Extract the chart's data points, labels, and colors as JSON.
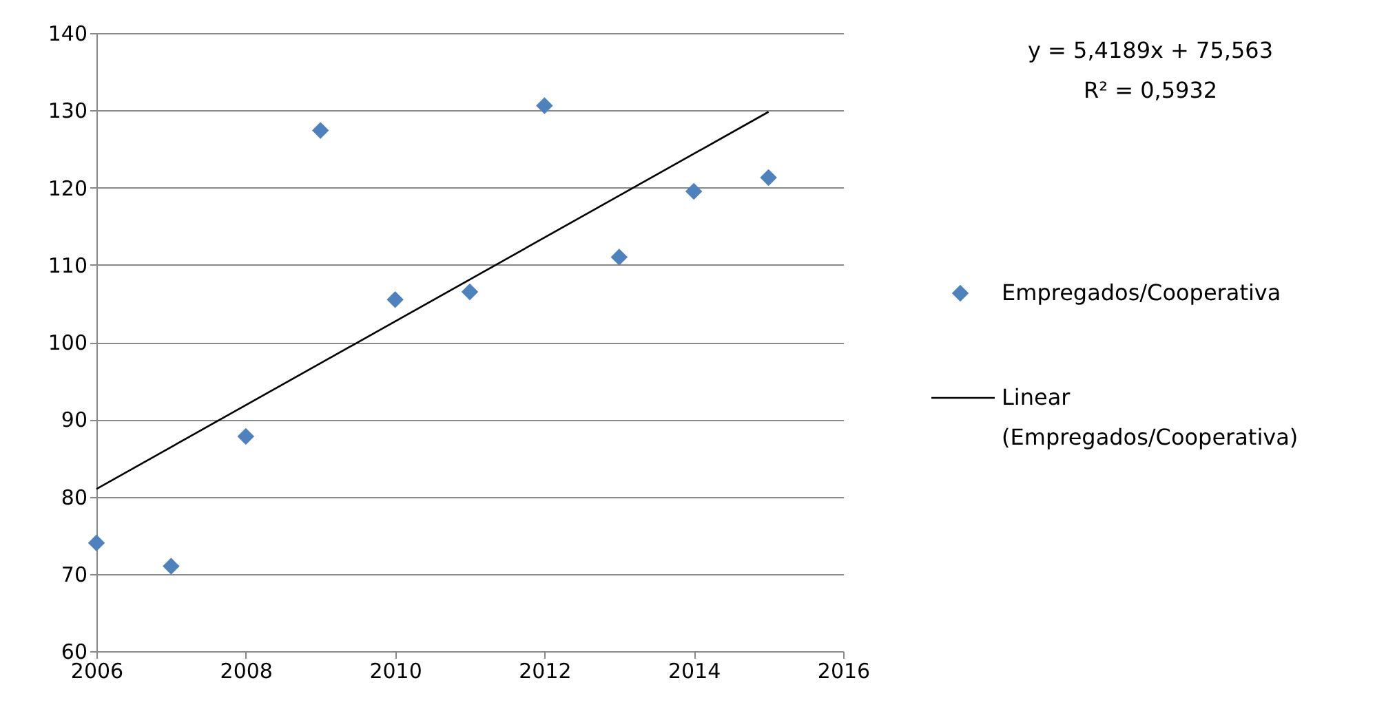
{
  "chart_data": {
    "type": "scatter",
    "x": [
      2006,
      2007,
      2008,
      2009,
      2010,
      2011,
      2012,
      2013,
      2014,
      2015
    ],
    "series": [
      {
        "name": "Empregados/Cooperativa",
        "color": "#4f81bd",
        "marker": "diamond",
        "values": [
          74.0,
          71.0,
          87.8,
          127.4,
          105.5,
          106.5,
          130.6,
          111.0,
          119.5,
          121.3
        ]
      },
      {
        "name": "Linear (Empregados/Cooperativa)",
        "type": "line",
        "color": "#000000",
        "marker": "none",
        "x": [
          2006,
          2015
        ],
        "values": [
          81.0,
          129.8
        ]
      }
    ],
    "xlim": [
      2006,
      2016
    ],
    "xticks": [
      2006,
      2008,
      2010,
      2012,
      2014,
      2016
    ],
    "ylim": [
      60,
      140
    ],
    "yticks": [
      60,
      70,
      80,
      90,
      100,
      110,
      120,
      130,
      140
    ],
    "grid": "y",
    "legend": "right",
    "annotations": [
      "y = 5,4189x  + 75,563",
      "R² = 0,5932"
    ]
  }
}
